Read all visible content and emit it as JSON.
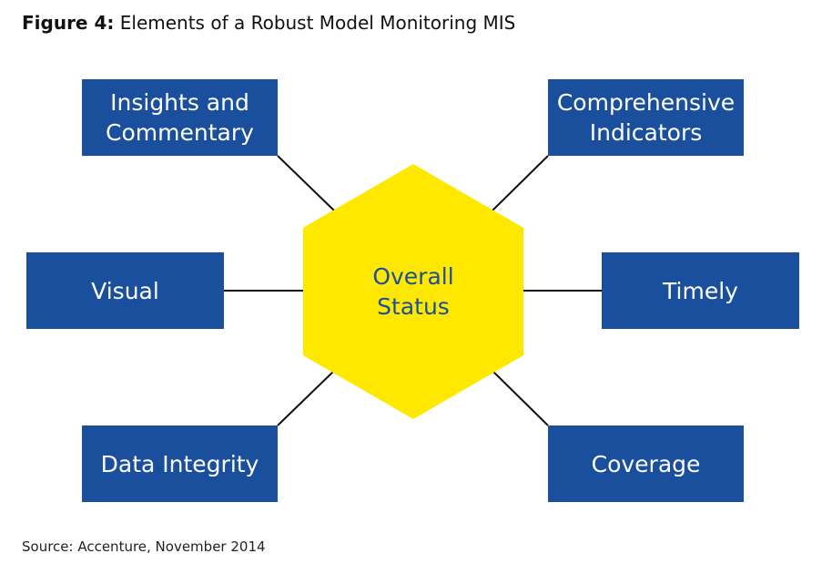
{
  "figure": {
    "label": "Figure 4:",
    "title": "Elements of a Robust Model Monitoring MIS"
  },
  "center": {
    "line1": "Overall",
    "line2": "Status",
    "fill_color": "#ffe800",
    "text_color": "#1a4f9e"
  },
  "elements": [
    {
      "line1": "Insights and",
      "line2": "Commentary"
    },
    {
      "line1": "Comprehensive",
      "line2": "Indicators"
    },
    {
      "line1": "Visual",
      "line2": ""
    },
    {
      "line1": "Timely",
      "line2": ""
    },
    {
      "line1": "Data Integrity",
      "line2": ""
    },
    {
      "line1": "Coverage",
      "line2": ""
    }
  ],
  "box_color": "#1a4f9e",
  "connector_color": "#111111",
  "source": "Source: Accenture, November 2014"
}
